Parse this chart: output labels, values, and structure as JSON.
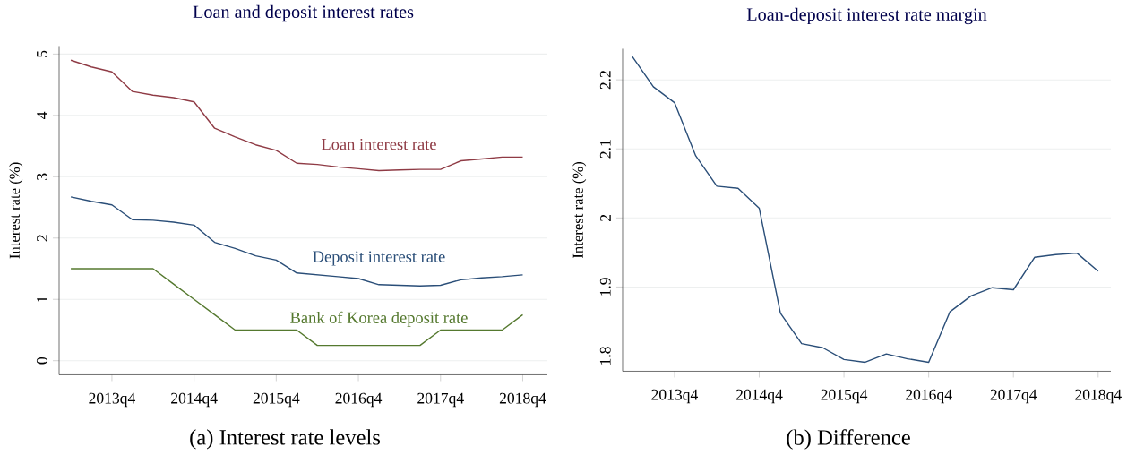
{
  "chart_data": [
    {
      "type": "line",
      "title": "Loan and deposit interest rates",
      "ylabel": "Interest rate (%)",
      "categories": [
        null,
        null,
        "2013q4",
        null,
        null,
        null,
        "2014q4",
        null,
        null,
        null,
        "2015q4",
        null,
        null,
        null,
        "2016q4",
        null,
        null,
        null,
        "2017q4",
        null,
        null,
        null,
        "2018q4"
      ],
      "series": [
        {
          "name": "Loan interest rate",
          "color": "#8f3b45",
          "values": [
            4.9,
            4.79,
            4.71,
            4.39,
            4.33,
            4.29,
            4.22,
            3.79,
            3.65,
            3.52,
            3.43,
            3.22,
            3.2,
            3.16,
            3.13,
            3.1,
            3.11,
            3.12,
            3.12,
            3.26,
            3.29,
            3.32,
            3.32
          ]
        },
        {
          "name": "Deposit interest rate",
          "color": "#2a4e78",
          "values": [
            2.67,
            2.6,
            2.54,
            2.3,
            2.29,
            2.26,
            2.21,
            1.93,
            1.83,
            1.71,
            1.64,
            1.43,
            1.4,
            1.37,
            1.34,
            1.24,
            1.23,
            1.22,
            1.23,
            1.32,
            1.35,
            1.37,
            1.4
          ]
        },
        {
          "name": "Bank of Korea deposit rate",
          "color": "#55792f",
          "values": [
            1.5,
            1.5,
            1.5,
            1.5,
            1.5,
            1.25,
            1.0,
            0.75,
            0.5,
            0.5,
            0.5,
            0.5,
            0.25,
            0.25,
            0.25,
            0.25,
            0.25,
            0.25,
            0.5,
            0.5,
            0.5,
            0.5,
            0.75
          ]
        }
      ],
      "ylim": [
        -0.23,
        5.13
      ],
      "yticks": [
        0,
        1,
        2,
        3,
        4,
        5
      ],
      "grid": "y",
      "annotations": [
        "(a) Interest rate levels"
      ]
    },
    {
      "type": "line",
      "title": "Loan-deposit interest rate margin",
      "ylabel": "Interest rate (%)",
      "categories": [
        null,
        null,
        "2013q4",
        null,
        null,
        null,
        "2014q4",
        null,
        null,
        null,
        "2015q4",
        null,
        null,
        null,
        "2016q4",
        null,
        null,
        null,
        "2017q4",
        null,
        null,
        null,
        "2018q4"
      ],
      "series": [
        {
          "color": "#2a4e78",
          "values": [
            2.234,
            2.19,
            2.167,
            2.09,
            2.046,
            2.043,
            2.014,
            1.862,
            1.818,
            1.812,
            1.795,
            1.791,
            1.803,
            1.796,
            1.791,
            1.864,
            1.887,
            1.899,
            1.896,
            1.943,
            1.947,
            1.949,
            1.923
          ]
        }
      ],
      "ylim": [
        1.778,
        2.245
      ],
      "yticks": [
        1.8,
        1.9,
        2,
        2.1,
        2.2
      ],
      "grid": "y",
      "annotations": [
        "(b) Difference"
      ]
    }
  ]
}
